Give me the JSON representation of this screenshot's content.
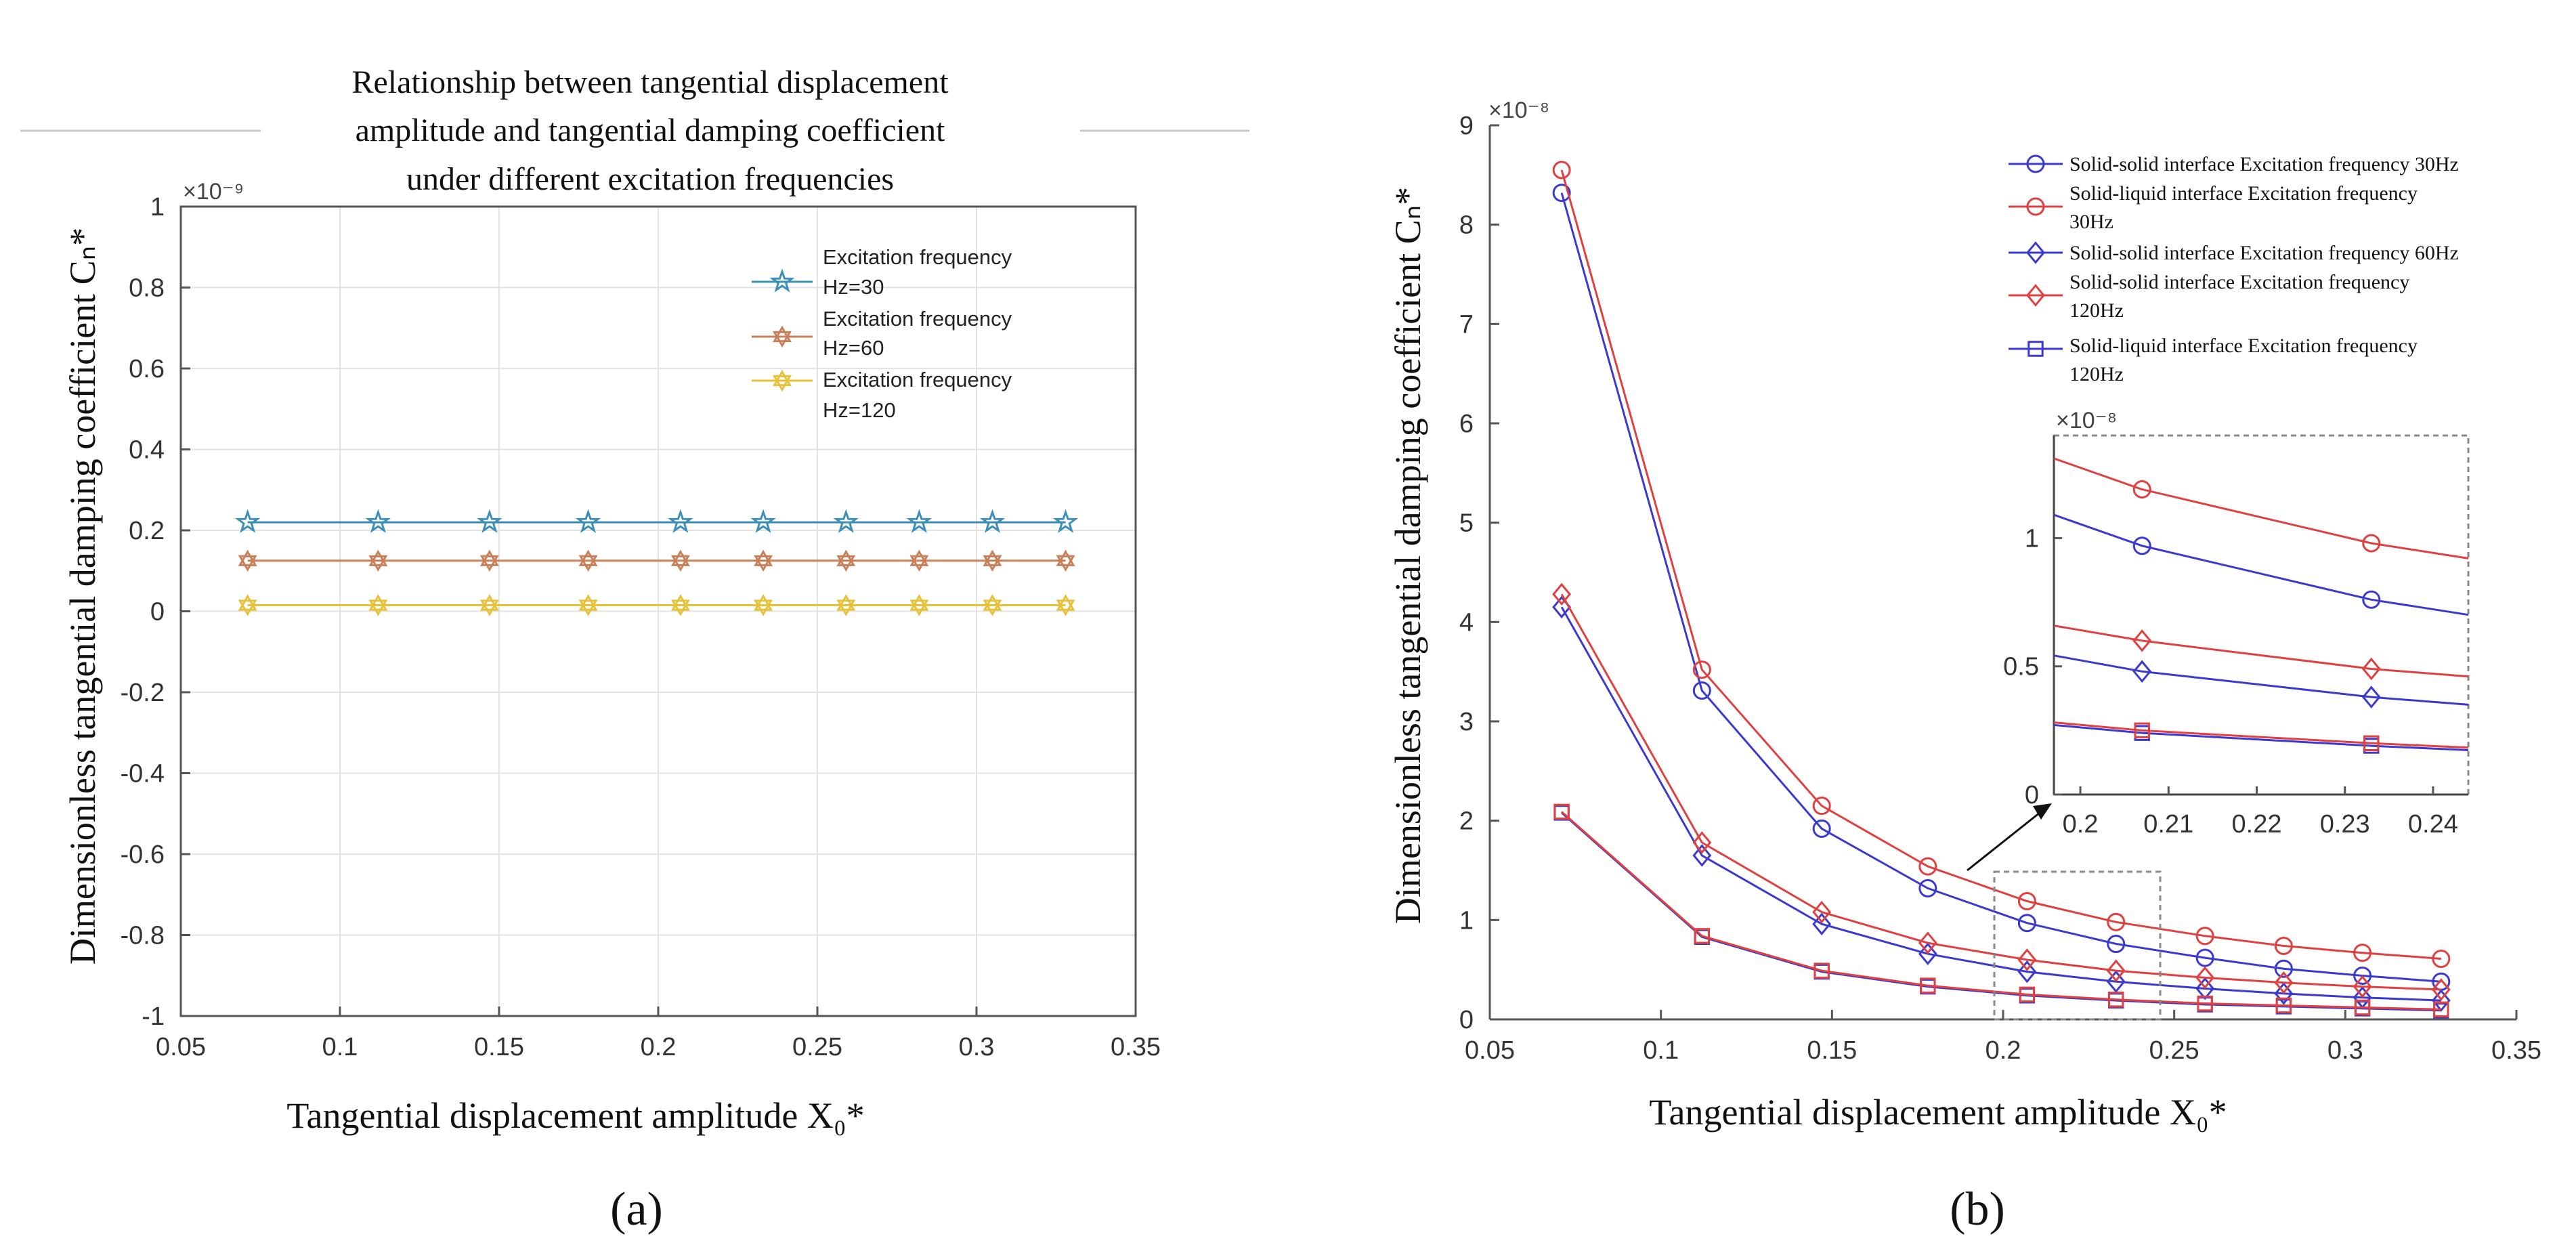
{
  "chart_data": [
    {
      "id": "a",
      "type": "line",
      "panel_label": "(a)",
      "title_lines": [
        "Relationship between tangential displacement",
        "amplitude and tangential damping coefficient",
        "under different excitation frequencies"
      ],
      "xlabel": "Tangential displacement amplitude X₀*",
      "ylabel": "Dimensionless tangential damping coefficient Cₙ*",
      "y_scale_label": "×10⁻⁹",
      "xlim": [
        0.05,
        0.35
      ],
      "ylim": [
        -1,
        1
      ],
      "x_ticks": [
        0.05,
        0.1,
        0.15,
        0.2,
        0.25,
        0.3,
        0.35
      ],
      "x_tick_labels": [
        "0.05",
        "0.1",
        "0.15",
        "0.2",
        "0.25",
        "0.3",
        "0.35"
      ],
      "y_ticks": [
        -1,
        -0.8,
        -0.6,
        -0.4,
        -0.2,
        0,
        0.2,
        0.4,
        0.6,
        0.8,
        1
      ],
      "y_tick_labels": [
        "-1",
        "-0.8",
        "-0.6",
        "-0.4",
        "-0.2",
        "0",
        "0.2",
        "0.4",
        "0.6",
        "0.8",
        "1"
      ],
      "grid": true,
      "legend_position": "top-right",
      "x": [
        0.071,
        0.112,
        0.147,
        0.178,
        0.207,
        0.233,
        0.259,
        0.282,
        0.305,
        0.328
      ],
      "series": [
        {
          "name_lines": [
            "Excitation  frequency",
            "Hz=30"
          ],
          "color": "#3d8fb8",
          "marker": "star",
          "values": [
            0.22,
            0.22,
            0.22,
            0.22,
            0.22,
            0.22,
            0.22,
            0.22,
            0.22,
            0.22
          ]
        },
        {
          "name_lines": [
            "Excitation  frequency",
            "Hz=60"
          ],
          "color": "#c8805a",
          "marker": "hexagram",
          "values": [
            0.125,
            0.125,
            0.125,
            0.125,
            0.125,
            0.125,
            0.125,
            0.125,
            0.125,
            0.125
          ]
        },
        {
          "name_lines": [
            "Excitation frequency",
            "Hz=120"
          ],
          "color": "#e6c23a",
          "marker": "hexagram",
          "values": [
            0.015,
            0.015,
            0.015,
            0.015,
            0.015,
            0.015,
            0.015,
            0.015,
            0.015,
            0.015
          ]
        }
      ]
    },
    {
      "id": "b",
      "type": "line",
      "panel_label": "(b)",
      "xlabel": "Tangential displacement amplitude X₀*",
      "ylabel": "Dimensionless tangential damping coefficient Cₙ*",
      "y_scale_label": "×10⁻⁸",
      "xlim": [
        0.05,
        0.35
      ],
      "ylim": [
        0,
        9
      ],
      "x_ticks": [
        0.05,
        0.1,
        0.15,
        0.2,
        0.25,
        0.3,
        0.35
      ],
      "x_tick_labels": [
        "0.05",
        "0.1",
        "0.15",
        "0.2",
        "0.25",
        "0.3",
        "0.35"
      ],
      "y_ticks": [
        0,
        1,
        2,
        3,
        4,
        5,
        6,
        7,
        8,
        9
      ],
      "y_tick_labels": [
        "0",
        "1",
        "2",
        "3",
        "4",
        "5",
        "6",
        "7",
        "8",
        "9"
      ],
      "grid": false,
      "legend_position": "top-right",
      "x": [
        0.071,
        0.112,
        0.147,
        0.178,
        0.207,
        0.233,
        0.259,
        0.282,
        0.305,
        0.328
      ],
      "series": [
        {
          "name_lines": [
            "Solid-solid interface Excitation frequency 30Hz"
          ],
          "color": "#3a3ad0",
          "marker": "circle",
          "values": [
            8.32,
            3.31,
            1.92,
            1.32,
            0.97,
            0.76,
            0.62,
            0.51,
            0.44,
            0.38
          ]
        },
        {
          "name_lines": [
            "Solid-liquid   interface   Excitation   frequency",
            "30Hz"
          ],
          "color": "#e04040",
          "marker": "circle",
          "values": [
            8.55,
            3.52,
            2.15,
            1.54,
            1.19,
            0.98,
            0.84,
            0.74,
            0.67,
            0.61
          ]
        },
        {
          "name_lines": [
            "Solid-solid interface Excitation frequency 60Hz"
          ],
          "color": "#3a3ad0",
          "marker": "diamond",
          "values": [
            4.15,
            1.65,
            0.96,
            0.66,
            0.48,
            0.38,
            0.31,
            0.26,
            0.22,
            0.19
          ]
        },
        {
          "name_lines": [
            "Solid-solid   interface   Excitation   frequency",
            "120Hz"
          ],
          "color": "#e04040",
          "marker": "diamond",
          "values": [
            4.28,
            1.78,
            1.08,
            0.77,
            0.6,
            0.49,
            0.42,
            0.37,
            0.33,
            0.3
          ]
        },
        {
          "name_lines": [
            "Solid-liquid interface Excitation frequency",
            "120Hz"
          ],
          "color": "#3a3ad0",
          "marker": "square",
          "values": [
            2.08,
            0.83,
            0.48,
            0.33,
            0.24,
            0.19,
            0.15,
            0.13,
            0.11,
            0.09
          ]
        },
        {
          "name_lines": [],
          "color": "#e04040",
          "marker": "square",
          "values": [
            2.09,
            0.84,
            0.49,
            0.34,
            0.25,
            0.2,
            0.16,
            0.14,
            0.12,
            0.1
          ]
        }
      ],
      "inset": {
        "y_scale_label": "×10⁻⁸",
        "xlim": [
          0.197,
          0.244
        ],
        "ylim": [
          0,
          1.4
        ],
        "x_ticks": [
          0.2,
          0.21,
          0.22,
          0.23,
          0.24
        ],
        "x_tick_labels": [
          "0.2",
          "0.21",
          "0.22",
          "0.23",
          "0.24"
        ],
        "y_ticks": [
          0,
          0.5,
          1
        ],
        "y_tick_labels": [
          "0",
          "0.5",
          "1"
        ]
      }
    }
  ]
}
